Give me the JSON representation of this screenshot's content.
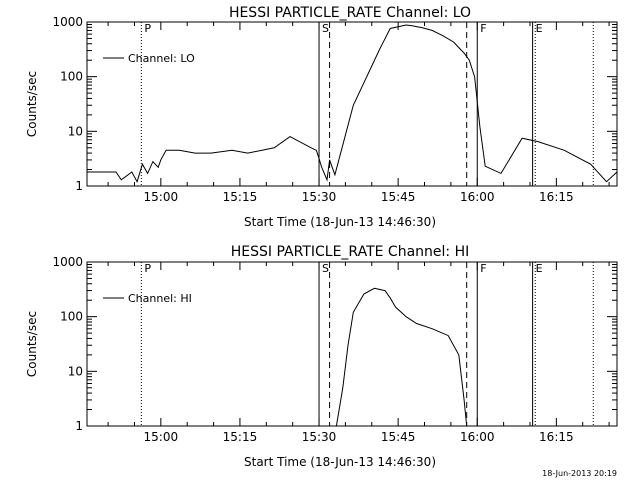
{
  "chart_data": [
    {
      "type": "line",
      "title": "HESSI PARTICLE_RATE Channel: LO",
      "xlabel": "Start Time (18-Jun-13 14:46:30)",
      "ylabel": "Counts/sec",
      "yscale": "log",
      "ylim": [
        1,
        1000
      ],
      "xlim_min": [
        -0.5,
        100
      ],
      "yticks": [
        "1",
        "10",
        "100",
        "1000"
      ],
      "xticks": [
        "15:00",
        "15:15",
        "15:30",
        "15:45",
        "16:00",
        "16:15"
      ],
      "legend": "top-left",
      "series": [
        {
          "name": "Channel: LO",
          "x": [
            -0.5,
            5,
            6,
            8,
            9,
            10,
            11,
            12,
            13,
            13.5,
            14.5,
            17,
            20,
            23,
            27,
            30,
            35,
            38,
            42,
            43,
            43.5,
            44,
            45,
            45.5,
            46.5,
            50,
            55,
            57,
            60,
            61,
            63,
            65,
            67,
            69,
            71,
            72,
            73,
            74,
            75,
            78,
            82,
            85,
            90,
            95,
            98,
            100
          ],
          "y": [
            1.8,
            1.8,
            1.3,
            1.8,
            1.2,
            2.5,
            1.7,
            2.8,
            2.2,
            3.0,
            4.5,
            4.5,
            4.0,
            4.0,
            4.5,
            4.0,
            5.0,
            8.0,
            5.0,
            4.5,
            3.2,
            2.2,
            1.3,
            3.0,
            1.6,
            30,
            320,
            760,
            880,
            860,
            790,
            700,
            560,
            430,
            270,
            200,
            100,
            12,
            2.3,
            1.7,
            7.5,
            6.5,
            4.5,
            2.5,
            1.2,
            1.8
          ]
        }
      ],
      "markers": [
        {
          "label": "P",
          "x": 9.8,
          "style": "dotted"
        },
        {
          "label": "S",
          "x": 43.5,
          "style": "solid"
        },
        {
          "label": "",
          "x": 45.5,
          "style": "dashed"
        },
        {
          "label": "",
          "x": 71.5,
          "style": "dashed"
        },
        {
          "label": "F",
          "x": 73.5,
          "style": "solid"
        },
        {
          "label": "E",
          "x": 84,
          "style": "solid"
        },
        {
          "label": "",
          "x": 84.5,
          "style": "dotted"
        },
        {
          "label": "",
          "x": 95.5,
          "style": "dotted"
        }
      ]
    },
    {
      "type": "line",
      "title": "HESSI PARTICLE_RATE Channel: HI",
      "xlabel": "Start Time (18-Jun-13 14:46:30)",
      "ylabel": "Counts/sec",
      "yscale": "log",
      "ylim": [
        1,
        1000
      ],
      "xlim_min": [
        -0.5,
        100
      ],
      "yticks": [
        "1",
        "10",
        "100",
        "1000"
      ],
      "xticks": [
        "15:00",
        "15:15",
        "15:30",
        "15:45",
        "16:00",
        "16:15"
      ],
      "legend": "top-left",
      "series": [
        {
          "name": "Channel: HI",
          "x": [
            46.8,
            48,
            49,
            50,
            52,
            54,
            56,
            57,
            58,
            60,
            62,
            65,
            68,
            70,
            71,
            71.5
          ],
          "y": [
            1,
            5,
            30,
            120,
            260,
            330,
            300,
            220,
            150,
            100,
            75,
            60,
            45,
            20,
            3,
            1
          ]
        }
      ],
      "markers": [
        {
          "label": "P",
          "x": 9.8,
          "style": "dotted"
        },
        {
          "label": "S",
          "x": 43.5,
          "style": "solid"
        },
        {
          "label": "",
          "x": 45.5,
          "style": "dashed"
        },
        {
          "label": "",
          "x": 71.5,
          "style": "dashed"
        },
        {
          "label": "F",
          "x": 73.5,
          "style": "solid"
        },
        {
          "label": "E",
          "x": 84,
          "style": "solid"
        },
        {
          "label": "",
          "x": 84.5,
          "style": "dotted"
        },
        {
          "label": "",
          "x": 95.5,
          "style": "dotted"
        }
      ]
    }
  ],
  "timestamp": "18-Jun-2013 20:19"
}
